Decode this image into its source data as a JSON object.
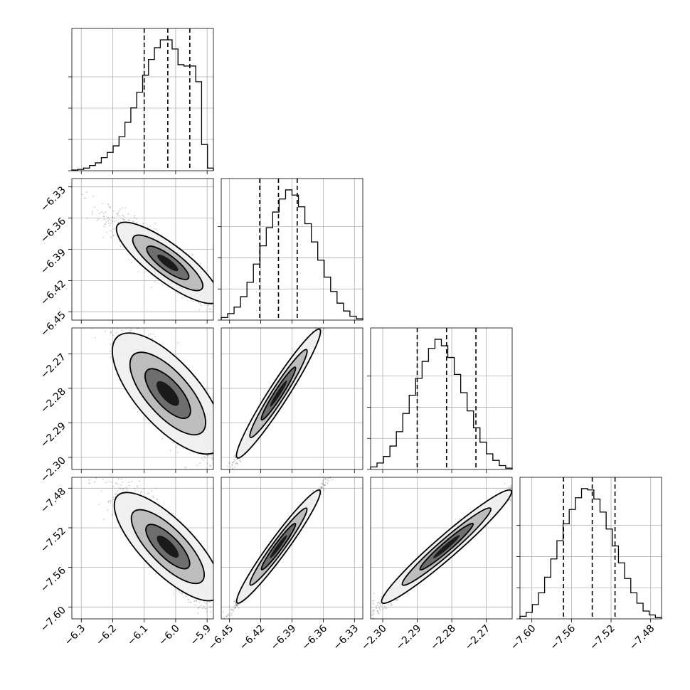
{
  "chart_data": {
    "type": "corner",
    "parameters": [
      {
        "index": 0,
        "range": [
          -6.33,
          -5.88
        ],
        "ticks": [
          "−6.3",
          "−6.2",
          "−6.1",
          "−6.0",
          "−5.9"
        ],
        "tick_values": [
          -6.3,
          -6.2,
          -6.1,
          -6.0,
          -5.9
        ],
        "quantiles": [
          -6.1,
          -6.025,
          -5.955
        ],
        "median": -6.025
      },
      {
        "index": 1,
        "range": [
          -6.458,
          -6.322
        ],
        "ticks": [
          "−6.45",
          "−6.42",
          "−6.39",
          "−6.36",
          "−6.33"
        ],
        "tick_values": [
          -6.45,
          -6.42,
          -6.39,
          -6.36,
          -6.33
        ],
        "quantiles": [
          -6.421,
          -6.403,
          -6.385
        ],
        "median": -6.403
      },
      {
        "index": 2,
        "range": [
          -2.3035,
          -2.2625
        ],
        "ticks": [
          "−2.30",
          "−2.29",
          "−2.28",
          "−2.27"
        ],
        "tick_values": [
          -2.3,
          -2.29,
          -2.28,
          -2.27
        ],
        "quantiles": [
          -2.29,
          -2.2815,
          -2.273
        ],
        "median": -2.2815
      },
      {
        "index": 3,
        "range": [
          -7.612,
          -7.469
        ],
        "ticks": [
          "−7.60",
          "−7.56",
          "−7.52",
          "−7.48"
        ],
        "tick_values": [
          -7.6,
          -7.56,
          -7.52,
          -7.48
        ],
        "quantiles": [
          -7.568,
          -7.539,
          -7.516
        ],
        "median": -7.539
      }
    ],
    "histograms": [
      {
        "param": 0,
        "counts": [
          0.005,
          0.01,
          0.02,
          0.04,
          0.06,
          0.1,
          0.14,
          0.19,
          0.26,
          0.37,
          0.48,
          0.6,
          0.73,
          0.85,
          0.94,
          1.0,
          1.0,
          0.93,
          0.81,
          0.8,
          0.8,
          0.68,
          0.2,
          0.02
        ]
      },
      {
        "param": 1,
        "counts": [
          0.02,
          0.05,
          0.1,
          0.18,
          0.29,
          0.43,
          0.57,
          0.71,
          0.83,
          0.93,
          1.0,
          0.96,
          0.87,
          0.74,
          0.6,
          0.46,
          0.33,
          0.22,
          0.13,
          0.07,
          0.03,
          0.01
        ]
      },
      {
        "param": 2,
        "counts": [
          0.02,
          0.05,
          0.1,
          0.18,
          0.29,
          0.43,
          0.57,
          0.7,
          0.83,
          0.93,
          1.0,
          0.95,
          0.86,
          0.73,
          0.59,
          0.45,
          0.32,
          0.21,
          0.12,
          0.07,
          0.03,
          0.01
        ]
      },
      {
        "param": 3,
        "counts": [
          0.02,
          0.05,
          0.11,
          0.2,
          0.32,
          0.46,
          0.6,
          0.73,
          0.84,
          0.93,
          1.0,
          0.99,
          0.92,
          0.82,
          0.69,
          0.56,
          0.43,
          0.31,
          0.2,
          0.12,
          0.06,
          0.03,
          0.01
        ]
      }
    ],
    "pairs": [
      {
        "x": 0,
        "y": 1,
        "correlation": -0.92
      },
      {
        "x": 0,
        "y": 2,
        "correlation": -0.88
      },
      {
        "x": 0,
        "y": 3,
        "correlation": -0.9
      },
      {
        "x": 1,
        "y": 2,
        "correlation": 0.995
      },
      {
        "x": 1,
        "y": 3,
        "correlation": 0.995
      },
      {
        "x": 2,
        "y": 3,
        "correlation": 0.99
      }
    ],
    "grid": true,
    "colors": {
      "line": "#000000",
      "scatter": "#666666",
      "grid": "#b0b0b0"
    }
  }
}
